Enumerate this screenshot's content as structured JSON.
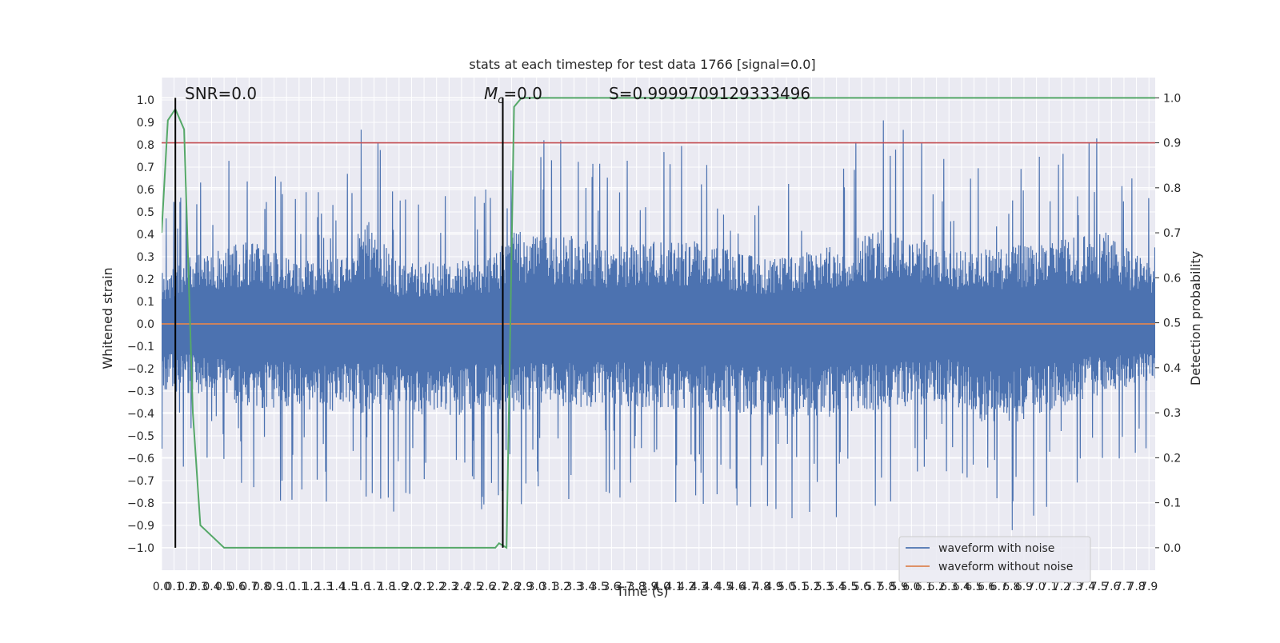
{
  "chart_data": {
    "type": "line",
    "title": "stats at each timestep for test data 1766 [signal=0.0]",
    "xlabel": "Time (s)",
    "ylabel": "Whitened strain",
    "y2label": "Detection probability",
    "xlim": [
      0.0,
      7.95
    ],
    "ylim": [
      -1.1,
      1.1
    ],
    "y2lim": [
      -0.05,
      1.045
    ],
    "x_ticks": [
      "0.0",
      "0.1",
      "0.2",
      "0.3",
      "0.4",
      "0.5",
      "0.6",
      "0.7",
      "0.8",
      "0.9",
      "1.0",
      "1.1",
      "1.2",
      "1.3",
      "1.4",
      "1.5",
      "1.6",
      "1.7",
      "1.8",
      "1.9",
      "2.0",
      "2.1",
      "2.2",
      "2.3",
      "2.4",
      "2.5",
      "2.6",
      "2.7",
      "2.8",
      "2.9",
      "3.0",
      "3.1",
      "3.2",
      "3.3",
      "3.4",
      "3.5",
      "3.6",
      "3.7",
      "3.8",
      "3.9",
      "4.0",
      "4.1",
      "4.2",
      "4.3",
      "4.4",
      "4.5",
      "4.6",
      "4.7",
      "4.8",
      "4.9",
      "5.0",
      "5.1",
      "5.2",
      "5.3",
      "5.4",
      "5.5",
      "5.6",
      "5.7",
      "5.8",
      "5.9",
      "6.0",
      "6.1",
      "6.2",
      "6.3",
      "6.4",
      "6.5",
      "6.6",
      "6.7",
      "6.8",
      "6.9",
      "7.0",
      "7.1",
      "7.2",
      "7.3",
      "7.4",
      "7.5",
      "7.6",
      "7.7",
      "7.8",
      "7.9"
    ],
    "y_ticks": [
      "−1.0",
      "−0.9",
      "−0.8",
      "−0.7",
      "−0.6",
      "−0.5",
      "−0.4",
      "−0.3",
      "−0.2",
      "−0.1",
      "0.0",
      "0.1",
      "0.2",
      "0.3",
      "0.4",
      "0.5",
      "0.6",
      "0.7",
      "0.8",
      "0.9",
      "1.0"
    ],
    "y2_ticks": [
      "0.0",
      "0.1",
      "0.2",
      "0.3",
      "0.4",
      "0.5",
      "0.6",
      "0.7",
      "0.8",
      "0.9",
      "1.0"
    ],
    "annotations": {
      "snr": "SNR=0.0",
      "mc_symbol": "M",
      "mc_sub": "c",
      "mc_value": "=0.0",
      "s": "S=0.9999709129333496"
    },
    "series": [
      {
        "name": "waveform with noise",
        "color": "#4c72b0",
        "description_values": "dense noise, amplitude ~±0.45 typical, extremes from -1.0 to 0.95",
        "envelope_peaks": [
          [
            0.05,
            0.51
          ],
          [
            0.15,
            0.62
          ],
          [
            0.42,
            0.69
          ],
          [
            0.7,
            0.78
          ],
          [
            1.05,
            0.58
          ],
          [
            1.4,
            0.61
          ],
          [
            1.66,
            0.95
          ],
          [
            1.9,
            0.55
          ],
          [
            2.3,
            0.59
          ],
          [
            2.6,
            0.6
          ],
          [
            2.85,
            0.88
          ],
          [
            3.0,
            0.82
          ],
          [
            3.3,
            0.82
          ],
          [
            3.6,
            0.71
          ],
          [
            4.2,
            0.8
          ],
          [
            4.4,
            0.72
          ],
          [
            4.9,
            0.6
          ],
          [
            5.3,
            0.7
          ],
          [
            5.8,
            0.92
          ],
          [
            6.4,
            0.68
          ],
          [
            7.1,
            0.76
          ],
          [
            7.55,
            0.85
          ],
          [
            7.9,
            0.56
          ]
        ],
        "envelope_troughs": [
          [
            0.1,
            -0.63
          ],
          [
            0.4,
            -0.66
          ],
          [
            0.65,
            -0.77
          ],
          [
            1.45,
            -0.82
          ],
          [
            1.9,
            -0.84
          ],
          [
            2.3,
            -0.86
          ],
          [
            2.7,
            -0.81
          ],
          [
            3.05,
            -0.8
          ],
          [
            3.4,
            -0.77
          ],
          [
            3.9,
            -0.78
          ],
          [
            4.55,
            -0.83
          ],
          [
            5.2,
            -0.88
          ],
          [
            5.55,
            -0.85
          ],
          [
            6.3,
            -0.72
          ],
          [
            6.65,
            -0.98
          ],
          [
            7.1,
            -0.81
          ],
          [
            7.6,
            -0.62
          ],
          [
            7.9,
            -0.55
          ]
        ]
      },
      {
        "name": "waveform without noise",
        "color": "#dd8452",
        "x": [
          0.0,
          7.95
        ],
        "y": [
          0.0,
          0.0
        ]
      },
      {
        "name": "",
        "axis": "right",
        "color": "#55a868",
        "x": [
          0.0,
          0.05,
          0.11,
          0.18,
          0.25,
          0.31,
          0.5,
          1.0,
          2.0,
          2.5,
          2.67,
          2.7,
          2.76,
          2.82,
          2.88,
          7.95
        ],
        "y": [
          0.7,
          0.95,
          0.975,
          0.93,
          0.3,
          0.05,
          0.0,
          0.0,
          0.0,
          0.0,
          0.0,
          0.01,
          0.0,
          0.98,
          1.0,
          1.0
        ]
      }
    ],
    "threshold_line": {
      "axis": "right",
      "value": 0.9,
      "color": "#c44e52"
    },
    "vertical_markers": [
      0.11,
      2.73
    ],
    "grid": true,
    "legend_position": "lower-right"
  }
}
